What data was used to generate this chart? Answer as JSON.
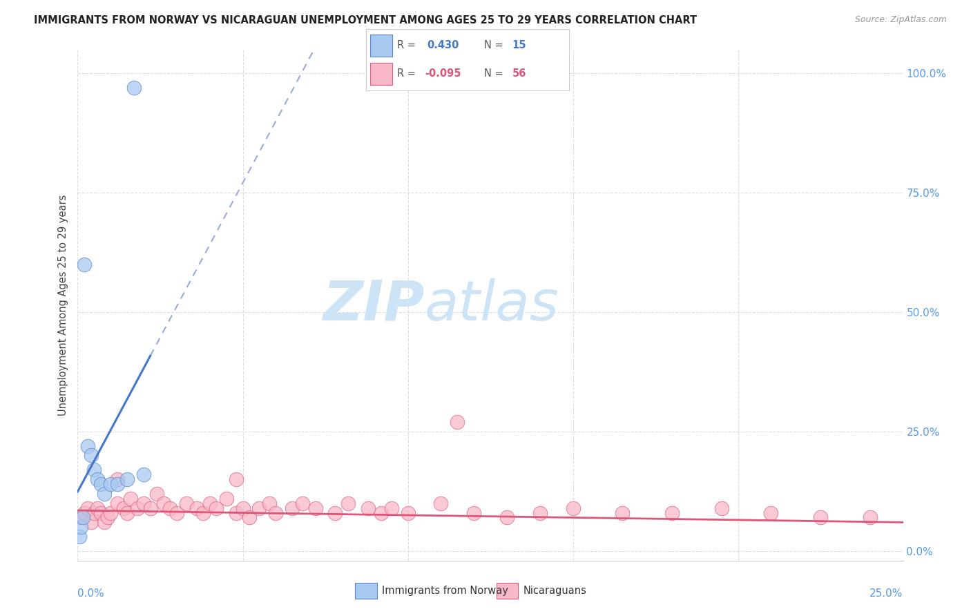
{
  "title": "IMMIGRANTS FROM NORWAY VS NICARAGUAN UNEMPLOYMENT AMONG AGES 25 TO 29 YEARS CORRELATION CHART",
  "source": "Source: ZipAtlas.com",
  "ylabel": "Unemployment Among Ages 25 to 29 years",
  "xlim": [
    0.0,
    0.25
  ],
  "ylim": [
    -0.02,
    1.05
  ],
  "norway_color": "#a8c8f0",
  "nicaragua_color": "#f8b8c8",
  "norway_edge_color": "#5588cc",
  "nicaragua_edge_color": "#e06080",
  "norway_trend_color": "#4477cc",
  "nicaragua_trend_color": "#dd5577",
  "dashed_color": "#99aadd",
  "grid_color": "#dddddd",
  "background_color": "#ffffff",
  "right_tick_color": "#5599ee",
  "norway_x": [
    0.0005,
    0.001,
    0.0015,
    0.002,
    0.003,
    0.004,
    0.005,
    0.006,
    0.007,
    0.008,
    0.01,
    0.012,
    0.015,
    0.02,
    0.017
  ],
  "norway_y": [
    0.03,
    0.05,
    0.07,
    0.6,
    0.22,
    0.2,
    0.17,
    0.15,
    0.14,
    0.12,
    0.14,
    0.14,
    0.15,
    0.16,
    0.97
  ],
  "nic_x": [
    0.001,
    0.002,
    0.003,
    0.004,
    0.005,
    0.006,
    0.007,
    0.008,
    0.009,
    0.01,
    0.012,
    0.014,
    0.015,
    0.016,
    0.018,
    0.02,
    0.022,
    0.024,
    0.026,
    0.028,
    0.03,
    0.033,
    0.036,
    0.038,
    0.04,
    0.042,
    0.045,
    0.048,
    0.05,
    0.052,
    0.055,
    0.058,
    0.06,
    0.065,
    0.068,
    0.072,
    0.078,
    0.082,
    0.088,
    0.092,
    0.095,
    0.1,
    0.11,
    0.12,
    0.13,
    0.14,
    0.15,
    0.165,
    0.18,
    0.195,
    0.21,
    0.225,
    0.24,
    0.048,
    0.012,
    0.115
  ],
  "nic_y": [
    0.07,
    0.08,
    0.09,
    0.06,
    0.08,
    0.09,
    0.08,
    0.06,
    0.07,
    0.08,
    0.1,
    0.09,
    0.08,
    0.11,
    0.09,
    0.1,
    0.09,
    0.12,
    0.1,
    0.09,
    0.08,
    0.1,
    0.09,
    0.08,
    0.1,
    0.09,
    0.11,
    0.08,
    0.09,
    0.07,
    0.09,
    0.1,
    0.08,
    0.09,
    0.1,
    0.09,
    0.08,
    0.1,
    0.09,
    0.08,
    0.09,
    0.08,
    0.1,
    0.08,
    0.07,
    0.08,
    0.09,
    0.08,
    0.08,
    0.09,
    0.08,
    0.07,
    0.07,
    0.15,
    0.15,
    0.27
  ],
  "watermark_zip": "ZIP",
  "watermark_atlas": "atlas",
  "watermark_color": "#cce4f5"
}
